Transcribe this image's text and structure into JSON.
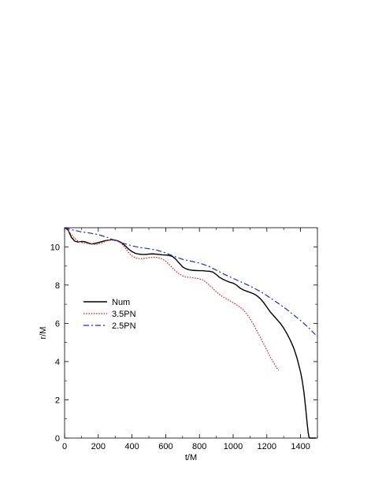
{
  "chart_data": {
    "type": "line",
    "xlabel": "t/M",
    "ylabel": "r/M",
    "xlim": [
      0,
      1500
    ],
    "ylim": [
      0,
      11
    ],
    "xticks": [
      0,
      200,
      400,
      600,
      800,
      1000,
      1200,
      1400
    ],
    "yticks": [
      0,
      2,
      4,
      6,
      8,
      10
    ],
    "xtick_labels": [
      "0",
      "200",
      "400",
      "600",
      "800",
      "1000",
      "1200",
      "1400"
    ],
    "ytick_labels": [
      "0",
      "2",
      "4",
      "6",
      "8",
      "10"
    ],
    "grid": false,
    "legend_position": "left-center",
    "series": [
      {
        "name": "Num",
        "color": "#000000",
        "dash": "solid",
        "x": [
          0,
          20,
          40,
          60,
          80,
          100,
          120,
          140,
          160,
          180,
          200,
          220,
          240,
          260,
          280,
          300,
          320,
          340,
          360,
          380,
          400,
          420,
          440,
          460,
          480,
          500,
          520,
          540,
          560,
          580,
          600,
          620,
          640,
          660,
          680,
          700,
          720,
          740,
          760,
          780,
          800,
          820,
          840,
          860,
          880,
          900,
          920,
          940,
          960,
          980,
          1000,
          1020,
          1040,
          1060,
          1080,
          1100,
          1120,
          1140,
          1160,
          1180,
          1200,
          1220,
          1240,
          1260,
          1280,
          1300,
          1320,
          1340,
          1360,
          1380,
          1400,
          1410,
          1420,
          1430,
          1440,
          1445,
          1450,
          1455,
          1460,
          1470,
          1480,
          1490
        ],
        "y": [
          11.0,
          10.9,
          10.5,
          10.3,
          10.25,
          10.28,
          10.27,
          10.2,
          10.15,
          10.18,
          10.22,
          10.27,
          10.32,
          10.35,
          10.37,
          10.35,
          10.3,
          10.2,
          10.05,
          9.88,
          9.75,
          9.66,
          9.62,
          9.6,
          9.6,
          9.62,
          9.63,
          9.62,
          9.6,
          9.58,
          9.57,
          9.55,
          9.5,
          9.35,
          9.15,
          8.95,
          8.85,
          8.8,
          8.77,
          8.76,
          8.75,
          8.75,
          8.73,
          8.72,
          8.68,
          8.55,
          8.4,
          8.3,
          8.22,
          8.15,
          8.1,
          8.0,
          7.85,
          7.75,
          7.68,
          7.62,
          7.55,
          7.45,
          7.3,
          7.1,
          6.85,
          6.6,
          6.4,
          6.2,
          6.0,
          5.75,
          5.45,
          5.1,
          4.7,
          4.15,
          3.45,
          3.0,
          2.4,
          1.6,
          0.7,
          0.3,
          0.05,
          0.0,
          0.0,
          0.0,
          0.0,
          0.0
        ]
      },
      {
        "name": "3.5PN",
        "color": "#e02020",
        "dash": "dotted",
        "x": [
          0,
          20,
          40,
          60,
          80,
          100,
          120,
          140,
          160,
          180,
          200,
          220,
          240,
          260,
          280,
          300,
          320,
          340,
          360,
          380,
          400,
          420,
          440,
          460,
          480,
          500,
          520,
          540,
          560,
          580,
          600,
          620,
          640,
          660,
          680,
          700,
          720,
          740,
          760,
          780,
          800,
          820,
          840,
          860,
          880,
          900,
          920,
          940,
          960,
          980,
          1000,
          1020,
          1040,
          1060,
          1080,
          1100,
          1120,
          1140,
          1160,
          1180,
          1200,
          1220,
          1240,
          1260,
          1270
        ],
        "y": [
          11.0,
          10.85,
          10.65,
          10.45,
          10.3,
          10.22,
          10.2,
          10.17,
          10.14,
          10.13,
          10.14,
          10.2,
          10.28,
          10.35,
          10.38,
          10.36,
          10.3,
          10.15,
          9.95,
          9.7,
          9.52,
          9.42,
          9.38,
          9.38,
          9.4,
          9.43,
          9.45,
          9.45,
          9.42,
          9.36,
          9.25,
          9.08,
          8.9,
          8.72,
          8.58,
          8.48,
          8.42,
          8.4,
          8.38,
          8.36,
          8.33,
          8.27,
          8.15,
          7.98,
          7.82,
          7.65,
          7.5,
          7.38,
          7.28,
          7.18,
          7.08,
          6.97,
          6.85,
          6.7,
          6.5,
          6.25,
          5.95,
          5.62,
          5.28,
          4.95,
          4.6,
          4.25,
          3.95,
          3.65,
          3.55
        ]
      },
      {
        "name": "2.5PN",
        "color": "#1030d0",
        "dash": "dash-dot",
        "x": [
          0,
          50,
          100,
          150,
          200,
          250,
          300,
          350,
          400,
          450,
          500,
          550,
          600,
          650,
          700,
          750,
          800,
          850,
          900,
          950,
          1000,
          1050,
          1100,
          1150,
          1200,
          1250,
          1300,
          1350,
          1400,
          1450,
          1500
        ],
        "y": [
          11.0,
          10.88,
          10.78,
          10.72,
          10.64,
          10.5,
          10.33,
          10.18,
          10.05,
          9.96,
          9.9,
          9.82,
          9.68,
          9.5,
          9.35,
          9.25,
          9.15,
          9.0,
          8.78,
          8.55,
          8.35,
          8.15,
          7.95,
          7.72,
          7.45,
          7.15,
          6.85,
          6.5,
          6.15,
          5.75,
          5.3
        ]
      }
    ]
  }
}
